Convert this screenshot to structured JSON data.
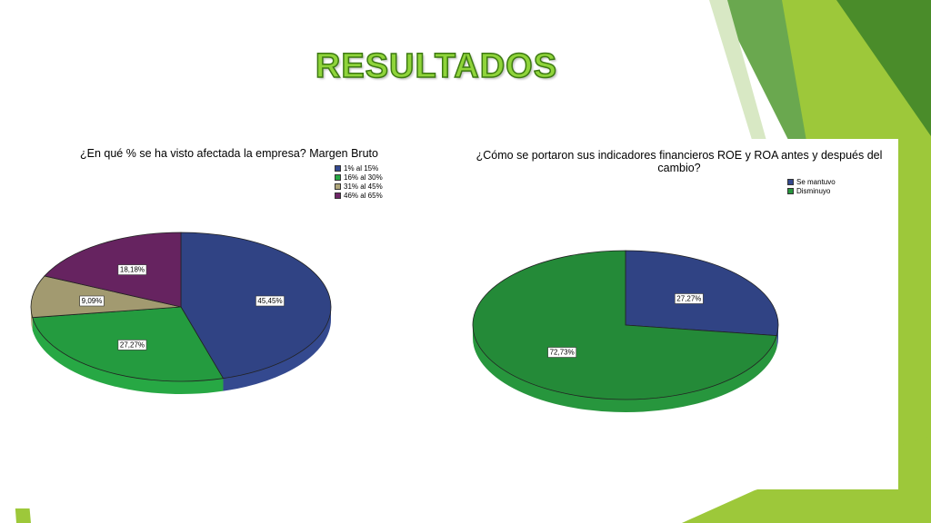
{
  "slide": {
    "title": "RESULTADOS",
    "colors": {
      "green_light": "#9dc83a",
      "green_mid": "#6aa84f",
      "green_dark": "#3e7a20",
      "title_fill": "#8fd43a"
    }
  },
  "chart_data": [
    {
      "type": "pie",
      "title": "¿En qué % se ha visto afectada la empresa? Margen Bruto",
      "categories": [
        "1% al 15%",
        "16% al 30%",
        "31% al 45%",
        "46% al 65%"
      ],
      "values": [
        45.45,
        27.27,
        9.09,
        18.18
      ],
      "labels": [
        "45,45%",
        "27,27%",
        "9,09%",
        "18,18%"
      ],
      "colors": [
        "#34498f",
        "#27a844",
        "#b0a77a",
        "#6f2668"
      ],
      "legend": "top-right"
    },
    {
      "type": "pie",
      "title": "¿Cómo se portaron sus indicadores financieros ROE y ROA antes y después del cambio?",
      "categories": [
        "Se mantuvo",
        "Disminuyo"
      ],
      "values": [
        27.27,
        72.73
      ],
      "labels": [
        "27,27%",
        "72,73%"
      ],
      "colors": [
        "#34498f",
        "#27963d"
      ],
      "legend": "top-right"
    }
  ]
}
